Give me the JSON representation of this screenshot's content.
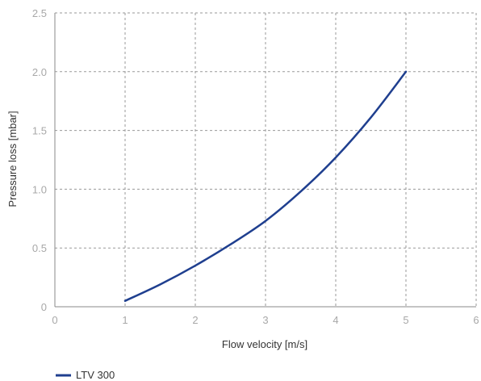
{
  "chart_data": {
    "type": "line",
    "title": "",
    "xlabel": "Flow velocity [m/s]",
    "ylabel": "Pressure loss [mbar]",
    "xlim": [
      0,
      6
    ],
    "ylim": [
      0,
      2.5
    ],
    "x_ticks": [
      "0",
      "1",
      "2",
      "3",
      "4",
      "5",
      "6"
    ],
    "y_ticks": [
      "0",
      "0.5",
      "1.0",
      "1.5",
      "2.0",
      "2.5"
    ],
    "grid": true,
    "legend_position": "bottom-left",
    "series": [
      {
        "name": "LTV 300",
        "color": "#1f3f8f",
        "x": [
          1.0,
          1.5,
          2.0,
          2.5,
          3.0,
          3.5,
          4.0,
          4.5,
          5.0
        ],
        "y": [
          0.05,
          0.19,
          0.35,
          0.53,
          0.73,
          0.98,
          1.27,
          1.61,
          2.0
        ]
      }
    ]
  }
}
